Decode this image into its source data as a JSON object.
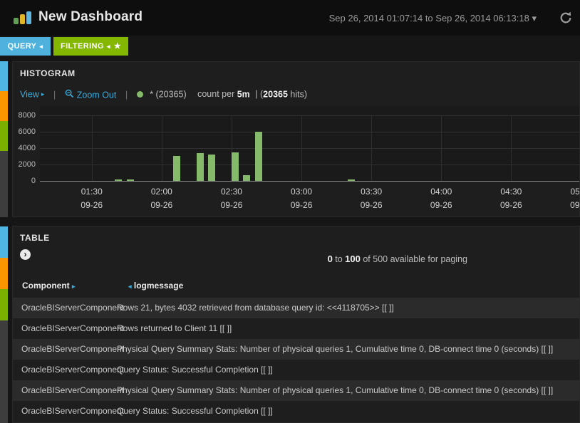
{
  "navbar": {
    "title": "New Dashboard",
    "time_range": "Sep 26, 2014 01:07:14 to Sep 26, 2014 06:13:18"
  },
  "tabs": {
    "query_label": "QUERY",
    "filtering_label": "FILTERING"
  },
  "icons": {
    "collapse_arrow": "◂",
    "expand_arrow": "▸",
    "star": "★",
    "caret_down": "▾",
    "panel_expand": "›"
  },
  "histogram": {
    "panel_title": "HISTOGRAM",
    "view_label": "View",
    "zoom_out_label": "Zoom Out",
    "legend_label": "* (20365)",
    "count_per_label": "count per",
    "interval_label": "5m",
    "hits_open": "| (",
    "hits_count": "20365",
    "hits_suffix": " hits)",
    "divider": "|"
  },
  "chart_data": {
    "type": "bar",
    "title": "count per 5m",
    "series": [
      {
        "name": "*",
        "total_hits": 20365,
        "color": "#84ba6a"
      }
    ],
    "x_range": [
      "Sep 26, 2014 01:07:14",
      "Sep 26, 2014 06:13:18"
    ],
    "interval": "5m",
    "ylim": [
      0,
      8000
    ],
    "y_ticks": [
      0,
      2000,
      4000,
      6000,
      8000
    ],
    "grid": true,
    "legend_position": "top",
    "x_ticks": [
      {
        "time": "01:30",
        "date": "09-26",
        "minutes": 90
      },
      {
        "time": "02:00",
        "date": "09-26",
        "minutes": 120
      },
      {
        "time": "02:30",
        "date": "09-26",
        "minutes": 150
      },
      {
        "time": "03:00",
        "date": "09-26",
        "minutes": 180
      },
      {
        "time": "03:30",
        "date": "09-26",
        "minutes": 210
      },
      {
        "time": "04:00",
        "date": "09-26",
        "minutes": 240
      },
      {
        "time": "04:30",
        "date": "09-26",
        "minutes": 270
      },
      {
        "time": "05:00",
        "date": "09-26",
        "minutes": 300
      }
    ],
    "bars": [
      {
        "time": "01:40",
        "minutes": 100,
        "count": 200
      },
      {
        "time": "01:45",
        "minutes": 105,
        "count": 150
      },
      {
        "time": "02:05",
        "minutes": 125,
        "count": 3050
      },
      {
        "time": "02:15",
        "minutes": 135,
        "count": 3400
      },
      {
        "time": "02:20",
        "minutes": 140,
        "count": 3200
      },
      {
        "time": "02:30",
        "minutes": 150,
        "count": 3500
      },
      {
        "time": "02:35",
        "minutes": 155,
        "count": 700
      },
      {
        "time": "02:40",
        "minutes": 160,
        "count": 6000
      },
      {
        "time": "03:20",
        "minutes": 200,
        "count": 150
      }
    ]
  },
  "table": {
    "panel_title": "TABLE",
    "paging_from": "0",
    "paging_sep": " to ",
    "paging_to": "100",
    "paging_rest": " of 500 available for paging",
    "columns": [
      {
        "label": "Component"
      },
      {
        "label": "logmessage"
      }
    ],
    "rows": [
      {
        "component": "OracleBIServerComponent",
        "logmessage": "Rows 21, bytes 4032 retrieved from database query id: <<4118705>> [[ ]]"
      },
      {
        "component": "OracleBIServerComponent",
        "logmessage": "Rows returned to Client 11 [[ ]]"
      },
      {
        "component": "OracleBIServerComponent",
        "logmessage": "Physical Query Summary Stats: Number of physical queries 1, Cumulative time 0, DB-connect time 0 (seconds) [[ ]]"
      },
      {
        "component": "OracleBIServerComponent",
        "logmessage": "Query Status: Successful Completion [[ ]]"
      },
      {
        "component": "OracleBIServerComponent",
        "logmessage": "Physical Query Summary Stats: Number of physical queries 1, Cumulative time 0, DB-connect time 0 (seconds) [[ ]]"
      },
      {
        "component": "OracleBIServerComponent",
        "logmessage": "Query Status: Successful Completion [[ ]]"
      }
    ]
  },
  "colors": {
    "query_tab": "#4eb2dd",
    "filtering_tab": "#83b700",
    "strip_blue": "#4fb6e3",
    "strip_orange": "#fb9500",
    "strip_green": "#7cb000",
    "strip_gray": "#3d3d3d",
    "bar_green": "#84ba6a",
    "link_blue": "#3cabda",
    "logo_green": "#5fa054",
    "logo_yellow": "#e0b528",
    "logo_blue": "#5fb7e0"
  }
}
